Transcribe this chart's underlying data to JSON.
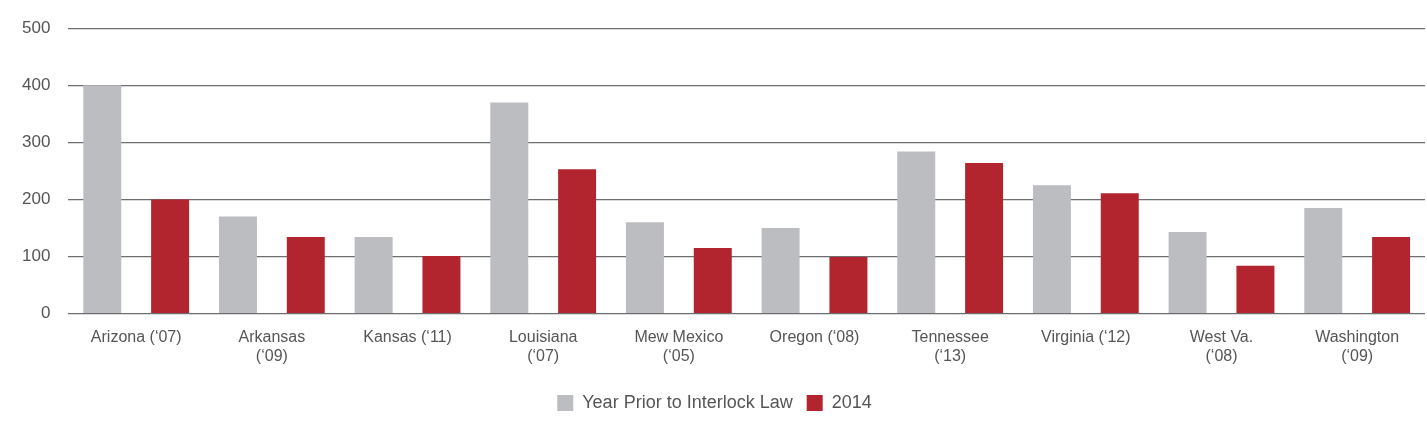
{
  "chart_data": {
    "type": "bar",
    "categories": [
      "Arizona (‘07)",
      "Arkansas\n(‘09)",
      "Kansas (‘11)",
      "Louisiana\n(‘07)",
      "Mew Mexico\n(‘05)",
      "Oregon (‘08)",
      "Tennessee\n(‘13)",
      "Virginia (‘12)",
      "West Va.\n(‘08)",
      "Washington\n(‘09)"
    ],
    "series": [
      {
        "name": "Year Prior to Interlock Law",
        "color": "#bcbdc0",
        "values": [
          400,
          170,
          134,
          370,
          160,
          150,
          284,
          225,
          143,
          185
        ]
      },
      {
        "name": "2014",
        "color": "#b2252f",
        "values": [
          200,
          134,
          101,
          253,
          115,
          99,
          264,
          211,
          84,
          134
        ]
      }
    ],
    "ylim": [
      0,
      500
    ],
    "yticks": [
      0,
      100,
      200,
      300,
      400,
      500
    ],
    "grid": "y",
    "legend": "bottom"
  }
}
